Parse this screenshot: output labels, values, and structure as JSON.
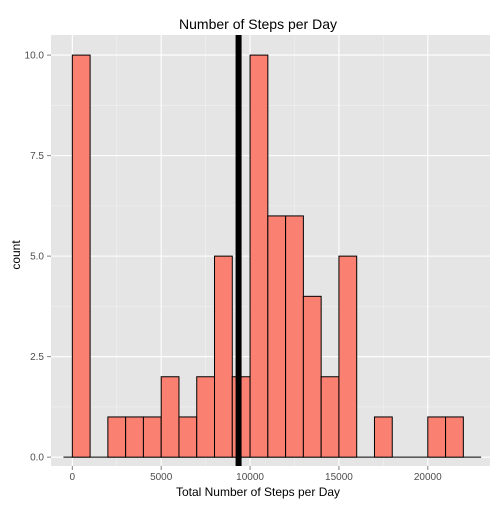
{
  "chart_data": {
    "type": "bar",
    "title": "Number of Steps per Day",
    "xlabel": "Total Number of Steps per Day",
    "ylabel": "count",
    "xlim": [
      -1200,
      23500
    ],
    "ylim": [
      -0.22,
      10.5
    ],
    "x_ticks": [
      {
        "value": 0,
        "label": "0"
      },
      {
        "value": 5000,
        "label": "5000"
      },
      {
        "value": 10000,
        "label": "10000"
      },
      {
        "value": 15000,
        "label": "15000"
      },
      {
        "value": 20000,
        "label": "20000"
      }
    ],
    "y_ticks": [
      {
        "value": 0,
        "label": "0.0"
      },
      {
        "value": 2.5,
        "label": "2.5"
      },
      {
        "value": 5,
        "label": "5.0"
      },
      {
        "value": 7.5,
        "label": "7.5"
      },
      {
        "value": 10,
        "label": "10.0"
      }
    ],
    "bin_width": 1000,
    "bins": [
      {
        "x_start": -500,
        "count": 0
      },
      {
        "x_start": 0,
        "count": 10
      },
      {
        "x_start": 1000,
        "count": 0
      },
      {
        "x_start": 2000,
        "count": 1
      },
      {
        "x_start": 3000,
        "count": 1
      },
      {
        "x_start": 4000,
        "count": 1
      },
      {
        "x_start": 5000,
        "count": 2
      },
      {
        "x_start": 6000,
        "count": 1
      },
      {
        "x_start": 7000,
        "count": 2
      },
      {
        "x_start": 8000,
        "count": 5
      },
      {
        "x_start": 9000,
        "count": 2
      },
      {
        "x_start": 10000,
        "count": 10
      },
      {
        "x_start": 11000,
        "count": 6
      },
      {
        "x_start": 12000,
        "count": 6
      },
      {
        "x_start": 13000,
        "count": 4
      },
      {
        "x_start": 14000,
        "count": 2
      },
      {
        "x_start": 15000,
        "count": 5
      },
      {
        "x_start": 16000,
        "count": 0
      },
      {
        "x_start": 17000,
        "count": 1
      },
      {
        "x_start": 18000,
        "count": 0
      },
      {
        "x_start": 19000,
        "count": 0
      },
      {
        "x_start": 20000,
        "count": 1
      },
      {
        "x_start": 21000,
        "count": 1
      },
      {
        "x_start": 22000,
        "count": 0
      }
    ],
    "x_range_end": 23000,
    "mean_line_x": 9354,
    "grid": true,
    "colors": {
      "panel_background": "#e5e5e5",
      "grid_major": "#ffffff",
      "grid_minor": "#f2f2f2",
      "bar_fill": "#fa8072",
      "bar_stroke": "#000000",
      "mean_line": "#000000",
      "tick_label": "#4d4d4d"
    }
  }
}
